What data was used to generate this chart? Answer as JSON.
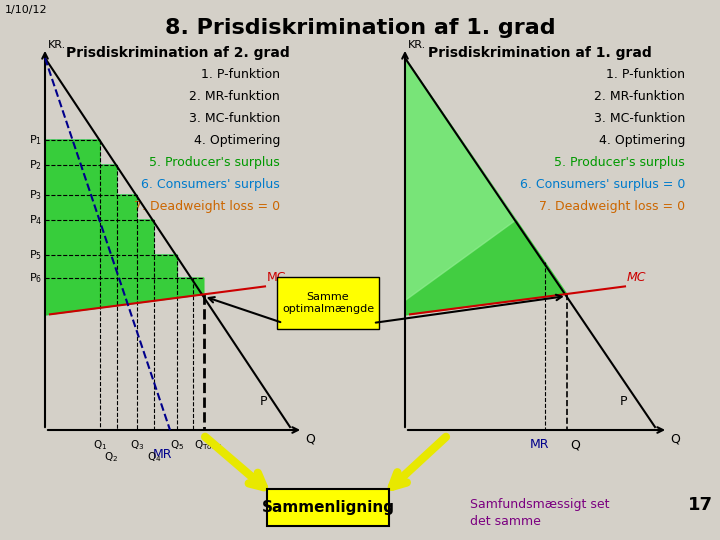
{
  "title": "8. Prisdiskrimination af 1. grad",
  "slide_num": "1/10/12",
  "bg_color": "#d4d0c8",
  "left_title": "Prisdiskrimination af 2. grad",
  "right_title": "Prisdiskrimination af 1. grad",
  "cyan_fill": "#87ceeb",
  "green_fill": "#32cd32",
  "light_green_fill": "#90ee90",
  "yellow_fill": "#ffff00",
  "mc_color": "#cc0000",
  "mr_color": "#00008b",
  "list_items_left": [
    [
      "1. P-funktion",
      "#000000"
    ],
    [
      "2. MR-funktion",
      "#000000"
    ],
    [
      "3. MC-funktion",
      "#000000"
    ],
    [
      "4. Optimering",
      "#000000"
    ],
    [
      "5. Producer's surplus",
      "#009900"
    ],
    [
      "6. Consumers' surplus",
      "#007bcc"
    ],
    [
      "7. Deadweight loss = 0",
      "#cc6600"
    ]
  ],
  "list_items_right": [
    [
      "1. P-funktion",
      "#000000"
    ],
    [
      "2. MR-funktion",
      "#000000"
    ],
    [
      "3. MC-funktion",
      "#000000"
    ],
    [
      "4. Optimering",
      "#000000"
    ],
    [
      "5. Producer's surplus",
      "#009900"
    ],
    [
      "6. Consumers' surplus = 0",
      "#007bcc"
    ],
    [
      "7. Deadweight loss = 0",
      "#cc6600"
    ]
  ],
  "bottom_text": "Sammenligning",
  "bottom_right1": "Samfundsmæssigt set",
  "bottom_right2": "det samme",
  "bottom_num": "17",
  "kr_label": "KR.",
  "q_label": "Q",
  "mc_label": "MC",
  "p_label": "P",
  "mr_label": "MR",
  "same_label": "Samme\noptimalmængde",
  "purple_color": "#7b0080"
}
